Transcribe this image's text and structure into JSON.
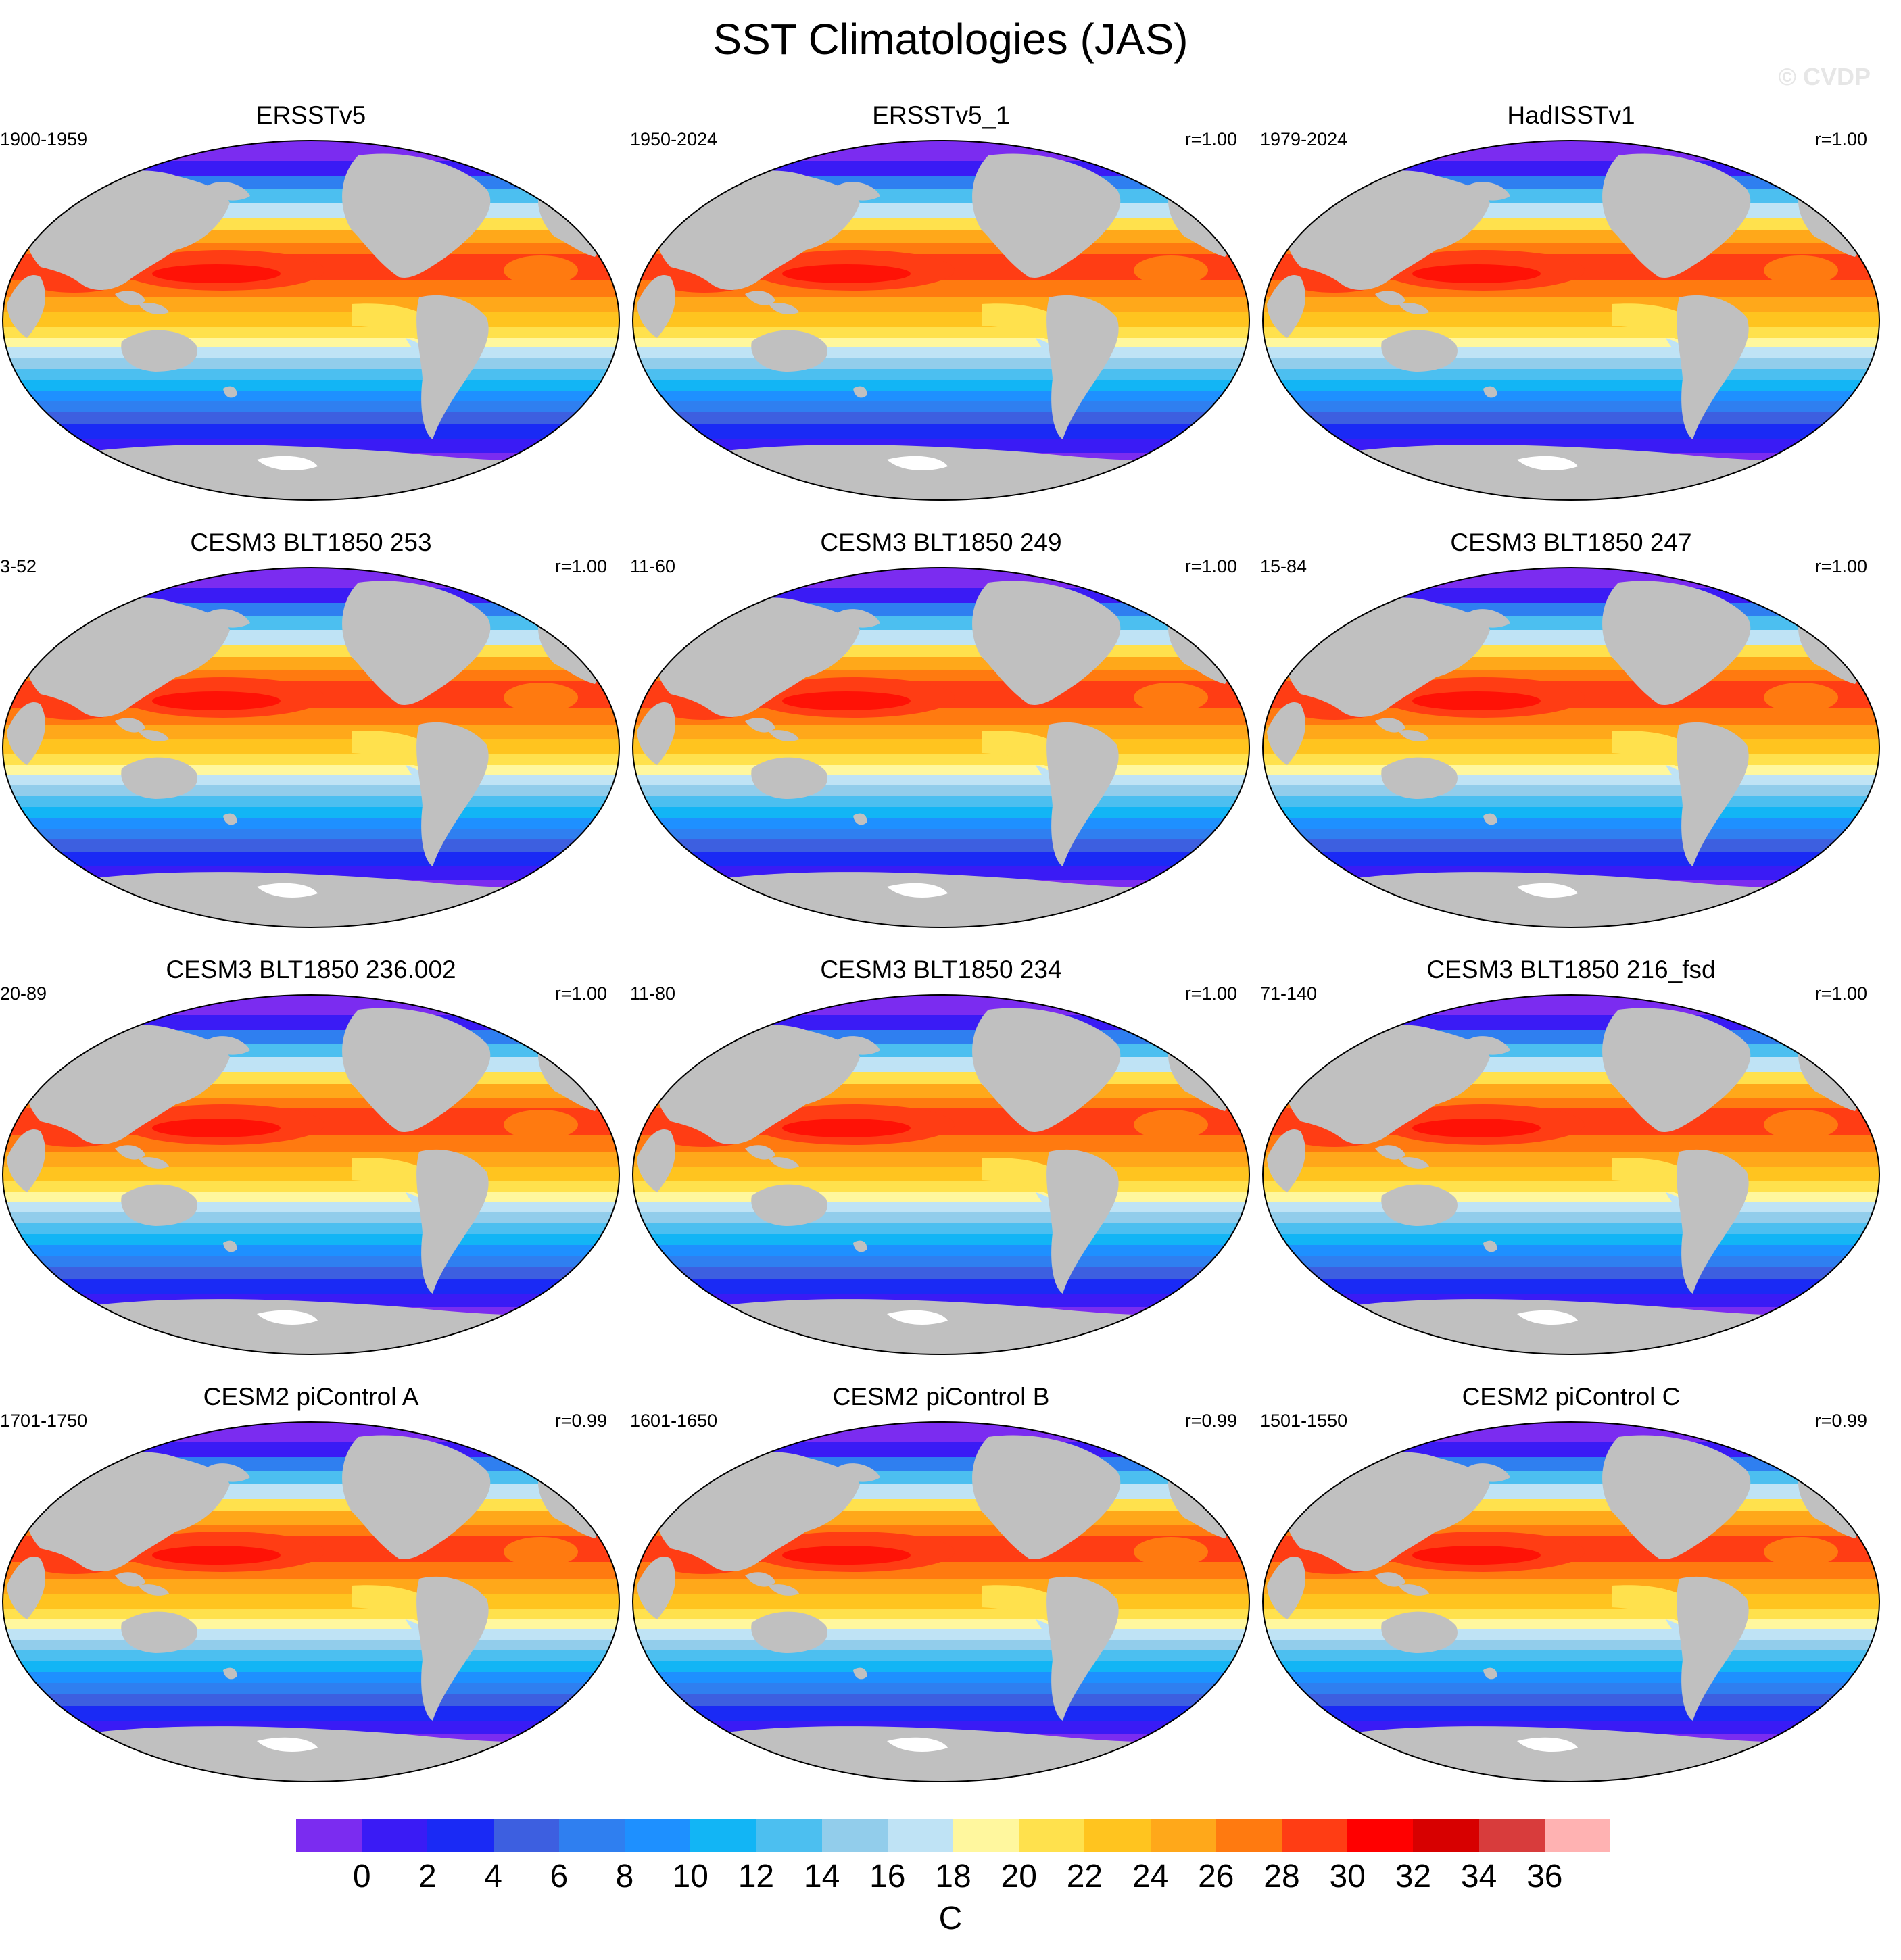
{
  "figure_title": "SST Climatologies (JAS)",
  "watermark": "© CVDP",
  "panels": [
    {
      "title": "ERSSTv5",
      "years": "1900-1959",
      "corr": ""
    },
    {
      "title": "ERSSTv5_1",
      "years": "1950-2024",
      "corr": "r=1.00"
    },
    {
      "title": "HadISSTv1",
      "years": "1979-2024",
      "corr": "r=1.00"
    },
    {
      "title": "CESM3 BLT1850 253",
      "years": "3-52",
      "corr": "r=1.00"
    },
    {
      "title": "CESM3 BLT1850 249",
      "years": "11-60",
      "corr": "r=1.00"
    },
    {
      "title": "CESM3 BLT1850 247",
      "years": "15-84",
      "corr": "r=1.00"
    },
    {
      "title": "CESM3 BLT1850 236.002",
      "years": "20-89",
      "corr": "r=1.00"
    },
    {
      "title": "CESM3 BLT1850 234",
      "years": "11-80",
      "corr": "r=1.00"
    },
    {
      "title": "CESM3 BLT1850 216_fsd",
      "years": "71-140",
      "corr": "r=1.00"
    },
    {
      "title": "CESM2 piControl A",
      "years": "1701-1750",
      "corr": "r=0.99"
    },
    {
      "title": "CESM2 piControl B",
      "years": "1601-1650",
      "corr": "r=0.99"
    },
    {
      "title": "CESM2 piControl C",
      "years": "1501-1550",
      "corr": "r=0.99"
    }
  ],
  "colorbar": {
    "colors": [
      "#7b2cf0",
      "#3a1bf5",
      "#1a2af5",
      "#3d5fe0",
      "#2f7ff0",
      "#1e90ff",
      "#12b5f5",
      "#4cbff0",
      "#92cdeb",
      "#bfe3f5",
      "#fff79e",
      "#ffe14d",
      "#ffc41f",
      "#ffa81a",
      "#ff7a10",
      "#ff3d14",
      "#ff0000",
      "#d70000",
      "#d83c3c",
      "#ffb2b2"
    ],
    "ticks": [
      "0",
      "2",
      "4",
      "6",
      "8",
      "10",
      "12",
      "14",
      "16",
      "18",
      "20",
      "22",
      "24",
      "26",
      "28",
      "30",
      "32",
      "34",
      "36"
    ],
    "units": "C"
  },
  "map": {
    "land_color": "#c0c0c0",
    "ice_color": "#ffffff"
  }
}
